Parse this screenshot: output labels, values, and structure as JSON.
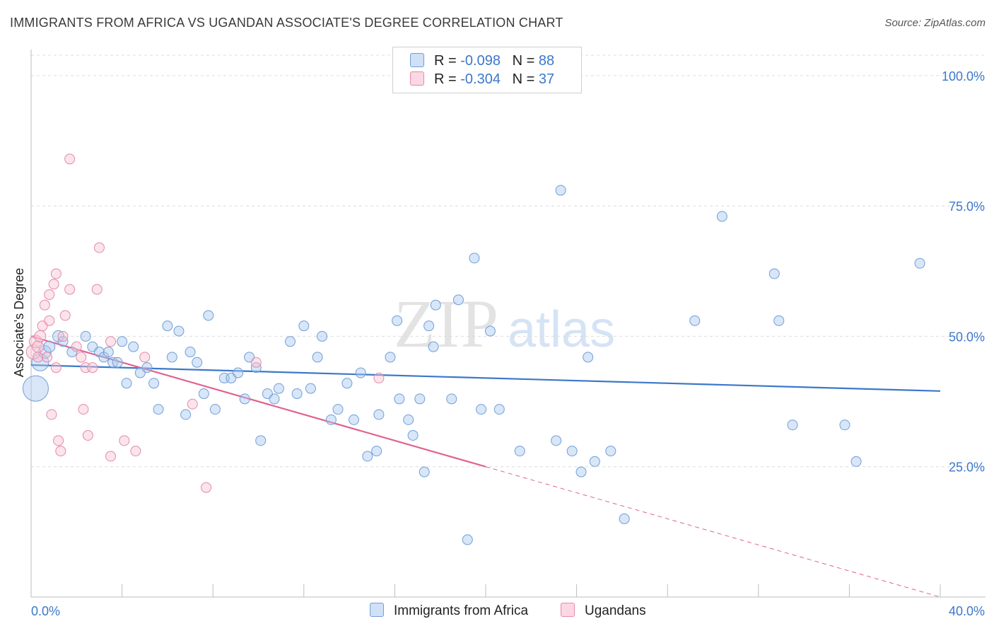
{
  "header": {
    "title": "IMMIGRANTS FROM AFRICA VS UGANDAN ASSOCIATE'S DEGREE CORRELATION CHART",
    "source": "Source: ZipAtlas.com"
  },
  "watermark": {
    "zip": "ZIP",
    "atlas": "atlas"
  },
  "legend": {
    "rows": [
      {
        "r_label": "R = ",
        "r_value": "-0.098",
        "n_label": "N = ",
        "n_value": "88",
        "color": "#a9c8f0",
        "border": "#6f9fd8"
      },
      {
        "r_label": "R = ",
        "r_value": "-0.304",
        "n_label": "N = ",
        "n_value": "37",
        "color": "#f7c3d3",
        "border": "#e58aa8"
      }
    ]
  },
  "bottom_legend": {
    "items": [
      {
        "label": "Immigrants from Africa",
        "color": "#a9c8f0",
        "border": "#6f9fd8"
      },
      {
        "label": "Ugandans",
        "color": "#f7c3d3",
        "border": "#e58aa8"
      }
    ]
  },
  "chart_data": {
    "type": "scatter",
    "title": "IMMIGRANTS FROM AFRICA VS UGANDAN ASSOCIATE'S DEGREE CORRELATION CHART",
    "xlabel": "",
    "ylabel": "Associate's Degree",
    "xlim": [
      0,
      40
    ],
    "ylim": [
      0,
      105
    ],
    "x_tick_labels": [
      "0.0%",
      "40.0%"
    ],
    "y_ticks": [
      25,
      50,
      75,
      100
    ],
    "y_tick_labels": [
      "25.0%",
      "50.0%",
      "75.0%",
      "100.0%"
    ],
    "grid": true,
    "colors": {
      "africa": "#3b78c9",
      "ugandans": "#e0638f"
    },
    "series": [
      {
        "name": "Immigrants from Africa",
        "color": "#a9c8f0",
        "points": [
          [
            0.2,
            40,
            18
          ],
          [
            0.4,
            45,
            12
          ],
          [
            0.6,
            47,
            9
          ],
          [
            0.8,
            48,
            8
          ],
          [
            1.2,
            50,
            8
          ],
          [
            1.4,
            49,
            7
          ],
          [
            1.8,
            47,
            7
          ],
          [
            2.4,
            50,
            7
          ],
          [
            2.7,
            48,
            7
          ],
          [
            3.0,
            47,
            7
          ],
          [
            3.2,
            46,
            7
          ],
          [
            3.4,
            47,
            7
          ],
          [
            3.6,
            45,
            7
          ],
          [
            3.8,
            45,
            7
          ],
          [
            4.0,
            49,
            7
          ],
          [
            4.2,
            41,
            7
          ],
          [
            4.5,
            48,
            7
          ],
          [
            4.8,
            43,
            7
          ],
          [
            5.1,
            44,
            7
          ],
          [
            5.4,
            41,
            7
          ],
          [
            5.6,
            36,
            7
          ],
          [
            6.0,
            52,
            7
          ],
          [
            6.2,
            46,
            7
          ],
          [
            6.5,
            51,
            7
          ],
          [
            6.8,
            35,
            7
          ],
          [
            7.0,
            47,
            7
          ],
          [
            7.3,
            45,
            7
          ],
          [
            7.6,
            39,
            7
          ],
          [
            7.8,
            54,
            7
          ],
          [
            8.1,
            36,
            7
          ],
          [
            8.5,
            42,
            7
          ],
          [
            8.8,
            42,
            7
          ],
          [
            9.1,
            43,
            7
          ],
          [
            9.4,
            38,
            7
          ],
          [
            9.6,
            46,
            7
          ],
          [
            9.9,
            44,
            7
          ],
          [
            10.1,
            30,
            7
          ],
          [
            10.4,
            39,
            7
          ],
          [
            10.7,
            38,
            7
          ],
          [
            10.9,
            40,
            7
          ],
          [
            11.4,
            49,
            7
          ],
          [
            11.7,
            39,
            7
          ],
          [
            12.0,
            52,
            7
          ],
          [
            12.3,
            40,
            7
          ],
          [
            12.6,
            46,
            7
          ],
          [
            12.8,
            50,
            7
          ],
          [
            13.2,
            34,
            7
          ],
          [
            13.5,
            36,
            7
          ],
          [
            13.9,
            41,
            7
          ],
          [
            14.2,
            34,
            7
          ],
          [
            14.5,
            43,
            7
          ],
          [
            14.8,
            27,
            7
          ],
          [
            15.2,
            28,
            7
          ],
          [
            15.3,
            35,
            7
          ],
          [
            15.8,
            46,
            7
          ],
          [
            16.1,
            53,
            7
          ],
          [
            16.2,
            38,
            7
          ],
          [
            16.6,
            34,
            7
          ],
          [
            16.8,
            31,
            7
          ],
          [
            17.1,
            38,
            7
          ],
          [
            17.3,
            24,
            7
          ],
          [
            17.5,
            52,
            7
          ],
          [
            17.7,
            48,
            7
          ],
          [
            17.8,
            56,
            7
          ],
          [
            18.5,
            38,
            7
          ],
          [
            18.8,
            57,
            7
          ],
          [
            19.2,
            11,
            7
          ],
          [
            19.5,
            65,
            7
          ],
          [
            19.8,
            36,
            7
          ],
          [
            20.2,
            51,
            7
          ],
          [
            20.6,
            36,
            7
          ],
          [
            21.5,
            28,
            7
          ],
          [
            23.1,
            30,
            7
          ],
          [
            23.3,
            78,
            7
          ],
          [
            23.8,
            28,
            7
          ],
          [
            24.2,
            24,
            7
          ],
          [
            24.5,
            46,
            7
          ],
          [
            24.8,
            26,
            7
          ],
          [
            25.5,
            28,
            7
          ],
          [
            26.1,
            15,
            7
          ],
          [
            29.2,
            53,
            7
          ],
          [
            30.4,
            73,
            7
          ],
          [
            32.7,
            62,
            7
          ],
          [
            32.9,
            53,
            7
          ],
          [
            33.5,
            33,
            7
          ],
          [
            35.8,
            33,
            7
          ],
          [
            36.3,
            26,
            7
          ],
          [
            39.1,
            64,
            7
          ]
        ]
      },
      {
        "name": "Ugandans",
        "color": "#f7c3d3",
        "points": [
          [
            0.1,
            47,
            10
          ],
          [
            0.2,
            49,
            9
          ],
          [
            0.3,
            48,
            8
          ],
          [
            0.4,
            50,
            8
          ],
          [
            0.5,
            52,
            7
          ],
          [
            0.6,
            56,
            7
          ],
          [
            0.7,
            46,
            7
          ],
          [
            0.8,
            58,
            7
          ],
          [
            0.8,
            53,
            7
          ],
          [
            0.9,
            35,
            7
          ],
          [
            1.0,
            60,
            7
          ],
          [
            1.1,
            62,
            7
          ],
          [
            1.1,
            44,
            7
          ],
          [
            1.2,
            30,
            7
          ],
          [
            1.3,
            28,
            7
          ],
          [
            1.4,
            50,
            7
          ],
          [
            1.5,
            54,
            7
          ],
          [
            1.7,
            84,
            7
          ],
          [
            1.7,
            59,
            7
          ],
          [
            2.0,
            48,
            7
          ],
          [
            2.2,
            46,
            7
          ],
          [
            2.3,
            36,
            7
          ],
          [
            2.4,
            44,
            7
          ],
          [
            2.5,
            31,
            7
          ],
          [
            2.7,
            44,
            7
          ],
          [
            2.9,
            59,
            7
          ],
          [
            3.0,
            67,
            7
          ],
          [
            3.5,
            49,
            7
          ],
          [
            3.5,
            27,
            7
          ],
          [
            4.1,
            30,
            7
          ],
          [
            4.6,
            28,
            7
          ],
          [
            5.0,
            46,
            7
          ],
          [
            7.1,
            37,
            7
          ],
          [
            7.7,
            21,
            7
          ],
          [
            9.9,
            45,
            7
          ],
          [
            15.3,
            42,
            7
          ],
          [
            0.3,
            46,
            7
          ]
        ]
      }
    ],
    "trendlines": [
      {
        "series": "Immigrants from Africa",
        "x": [
          0,
          40
        ],
        "y": [
          44.5,
          39.5
        ],
        "style": "solid"
      },
      {
        "series": "Ugandans",
        "x": [
          0,
          20
        ],
        "y": [
          50,
          25
        ],
        "style": "solid"
      },
      {
        "series": "Ugandans",
        "x": [
          20,
          40
        ],
        "y": [
          25,
          0
        ],
        "style": "dashed"
      }
    ]
  }
}
